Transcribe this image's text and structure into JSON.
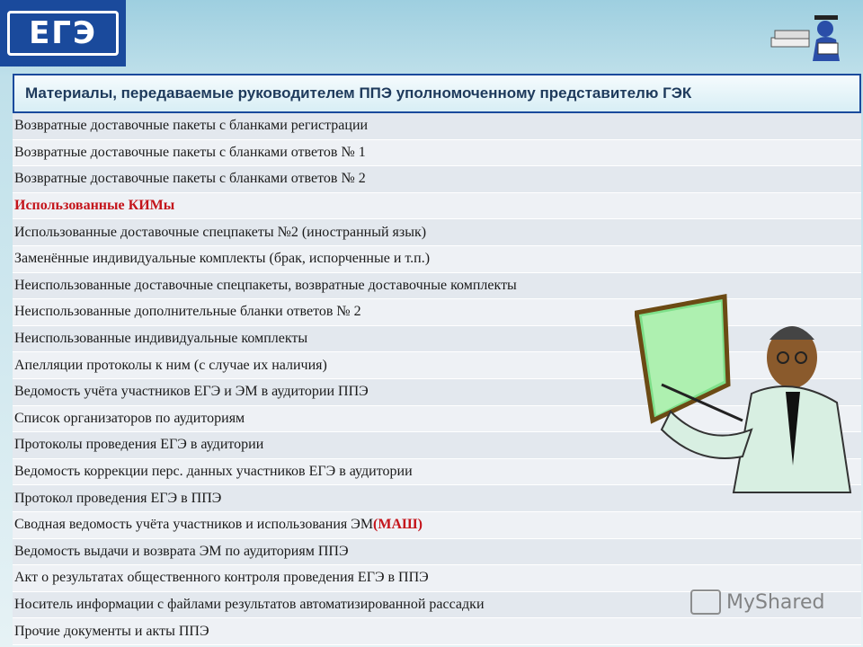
{
  "logo": {
    "text": "ЕГЭ"
  },
  "table": {
    "title": "Материалы, передаваемые руководителем ППЭ уполномоченному представителю ГЭК",
    "rows": [
      {
        "text": "Возвратные доставочные пакеты с бланками регистрации",
        "suffix": ""
      },
      {
        "text": "Возвратные доставочные пакеты с бланками ответов № 1",
        "suffix": ""
      },
      {
        "text": "Возвратные доставочные пакеты с бланками ответов № 2",
        "suffix": ""
      },
      {
        "text": "Использованные КИМы",
        "suffix": ""
      },
      {
        "text": "Использованные доставочные спецпакеты №2 (иностранный язык)",
        "suffix": ""
      },
      {
        "text": "Заменённые индивидуальные комплекты (брак, испорченные и т.п.)",
        "suffix": ""
      },
      {
        "text": "Неиспользованные доставочные спецпакеты, возвратные доставочные комплекты",
        "suffix": ""
      },
      {
        "text": "Неиспользованные дополнительные бланки ответов № 2",
        "suffix": ""
      },
      {
        "text": "Неиспользованные индивидуальные комплекты",
        "suffix": ""
      },
      {
        "text": "Апелляции  протоколы к ним  (с случае их наличия)",
        "suffix": ""
      },
      {
        "text": "Ведомость учёта участников ЕГЭ и ЭМ в аудитории ППЭ",
        "suffix": ""
      },
      {
        "text": "Список организаторов по аудиториям",
        "suffix": ""
      },
      {
        "text": "Протоколы проведения ЕГЭ в аудитории",
        "suffix": ""
      },
      {
        "text": "Ведомость коррекции перс. данных участников ЕГЭ в аудитории",
        "suffix": ""
      },
      {
        "text": "Протокол проведения ЕГЭ в ППЭ",
        "suffix": ""
      },
      {
        "text": "Сводная ведомость учёта участников и использования ЭМ ",
        "suffix": "(МАШ)"
      },
      {
        "text": "Ведомость выдачи и возврата ЭМ по аудиториям ППЭ",
        "suffix": ""
      },
      {
        "text": "Акт о результатах общественного контроля проведения ЕГЭ в ППЭ",
        "suffix": ""
      },
      {
        "text": "Носитель информации с файлами результатов автоматизированной рассадки",
        "suffix": ""
      },
      {
        "text": "Прочие документы и акты ППЭ",
        "suffix": ""
      }
    ]
  },
  "watermark": {
    "text": "MyShared"
  },
  "colors": {
    "accent": "#1a4a9c",
    "highlight": "#c4141b"
  }
}
